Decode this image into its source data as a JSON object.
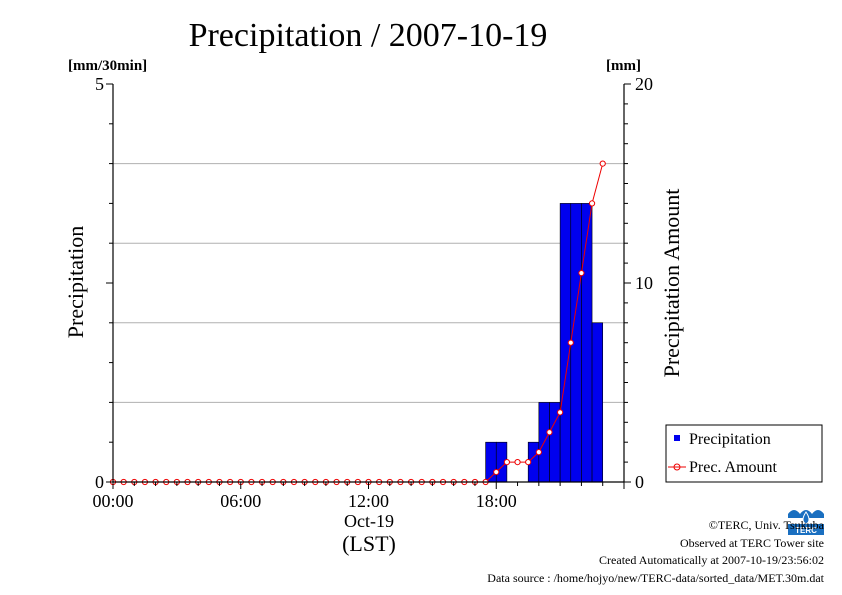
{
  "chart_data": {
    "type": "bar",
    "title": "Precipitation / 2007-10-19",
    "left_unit": "[mm/30min]",
    "right_unit": "[mm]",
    "ylabel": "Precipitation",
    "y2label": "Precipitation Amount",
    "xlabel": "(LST)",
    "date_label": "Oct-19",
    "ylim": [
      0,
      5
    ],
    "y2lim": [
      0,
      20
    ],
    "yticks": [
      "0",
      "5"
    ],
    "y2ticks": [
      "0",
      "10",
      "20"
    ],
    "xticks": [
      "00:00",
      "06:00",
      "12:00",
      "18:00"
    ],
    "grid": true,
    "legend_position": "bottom-right",
    "x": [
      "00:00",
      "00:30",
      "01:00",
      "01:30",
      "02:00",
      "02:30",
      "03:00",
      "03:30",
      "04:00",
      "04:30",
      "05:00",
      "05:30",
      "06:00",
      "06:30",
      "07:00",
      "07:30",
      "08:00",
      "08:30",
      "09:00",
      "09:30",
      "10:00",
      "10:30",
      "11:00",
      "11:30",
      "12:00",
      "12:30",
      "13:00",
      "13:30",
      "14:00",
      "14:30",
      "15:00",
      "15:30",
      "16:00",
      "16:30",
      "17:00",
      "17:30",
      "18:00",
      "18:30",
      "19:00",
      "19:30",
      "20:00",
      "20:30",
      "21:00",
      "21:30",
      "22:00",
      "22:30",
      "23:00",
      "23:30"
    ],
    "series": [
      {
        "name": "Precipitation",
        "type": "bar",
        "axis": "left",
        "color": "#0000ee",
        "values": [
          0,
          0,
          0,
          0,
          0,
          0,
          0,
          0,
          0,
          0,
          0,
          0,
          0,
          0,
          0,
          0,
          0,
          0,
          0,
          0,
          0,
          0,
          0,
          0,
          0,
          0,
          0,
          0,
          0,
          0,
          0,
          0,
          0,
          0,
          0,
          0.5,
          0.5,
          0,
          0,
          0.5,
          1.0,
          1.0,
          3.5,
          3.5,
          3.5,
          2.0,
          0,
          0
        ]
      },
      {
        "name": "Prec. Amount",
        "type": "line",
        "axis": "right",
        "color": "#ee0000",
        "values": [
          0,
          0,
          0,
          0,
          0,
          0,
          0,
          0,
          0,
          0,
          0,
          0,
          0,
          0,
          0,
          0,
          0,
          0,
          0,
          0,
          0,
          0,
          0,
          0,
          0,
          0,
          0,
          0,
          0,
          0,
          0,
          0,
          0,
          0,
          0,
          0,
          0.5,
          1.0,
          1.0,
          1.0,
          1.5,
          2.5,
          3.5,
          7.0,
          10.5,
          14.0,
          16.0,
          null
        ]
      }
    ]
  },
  "credits": {
    "copyright": "©TERC, Univ. Tsukuba",
    "observed": "Observed at TERC Tower site",
    "created": "Created Automatically at 2007-10-19/23:56:02",
    "source": "Data source : /home/hojyo/new/TERC-data/sorted_data/MET.30m.dat",
    "logo_text": "TERC"
  }
}
